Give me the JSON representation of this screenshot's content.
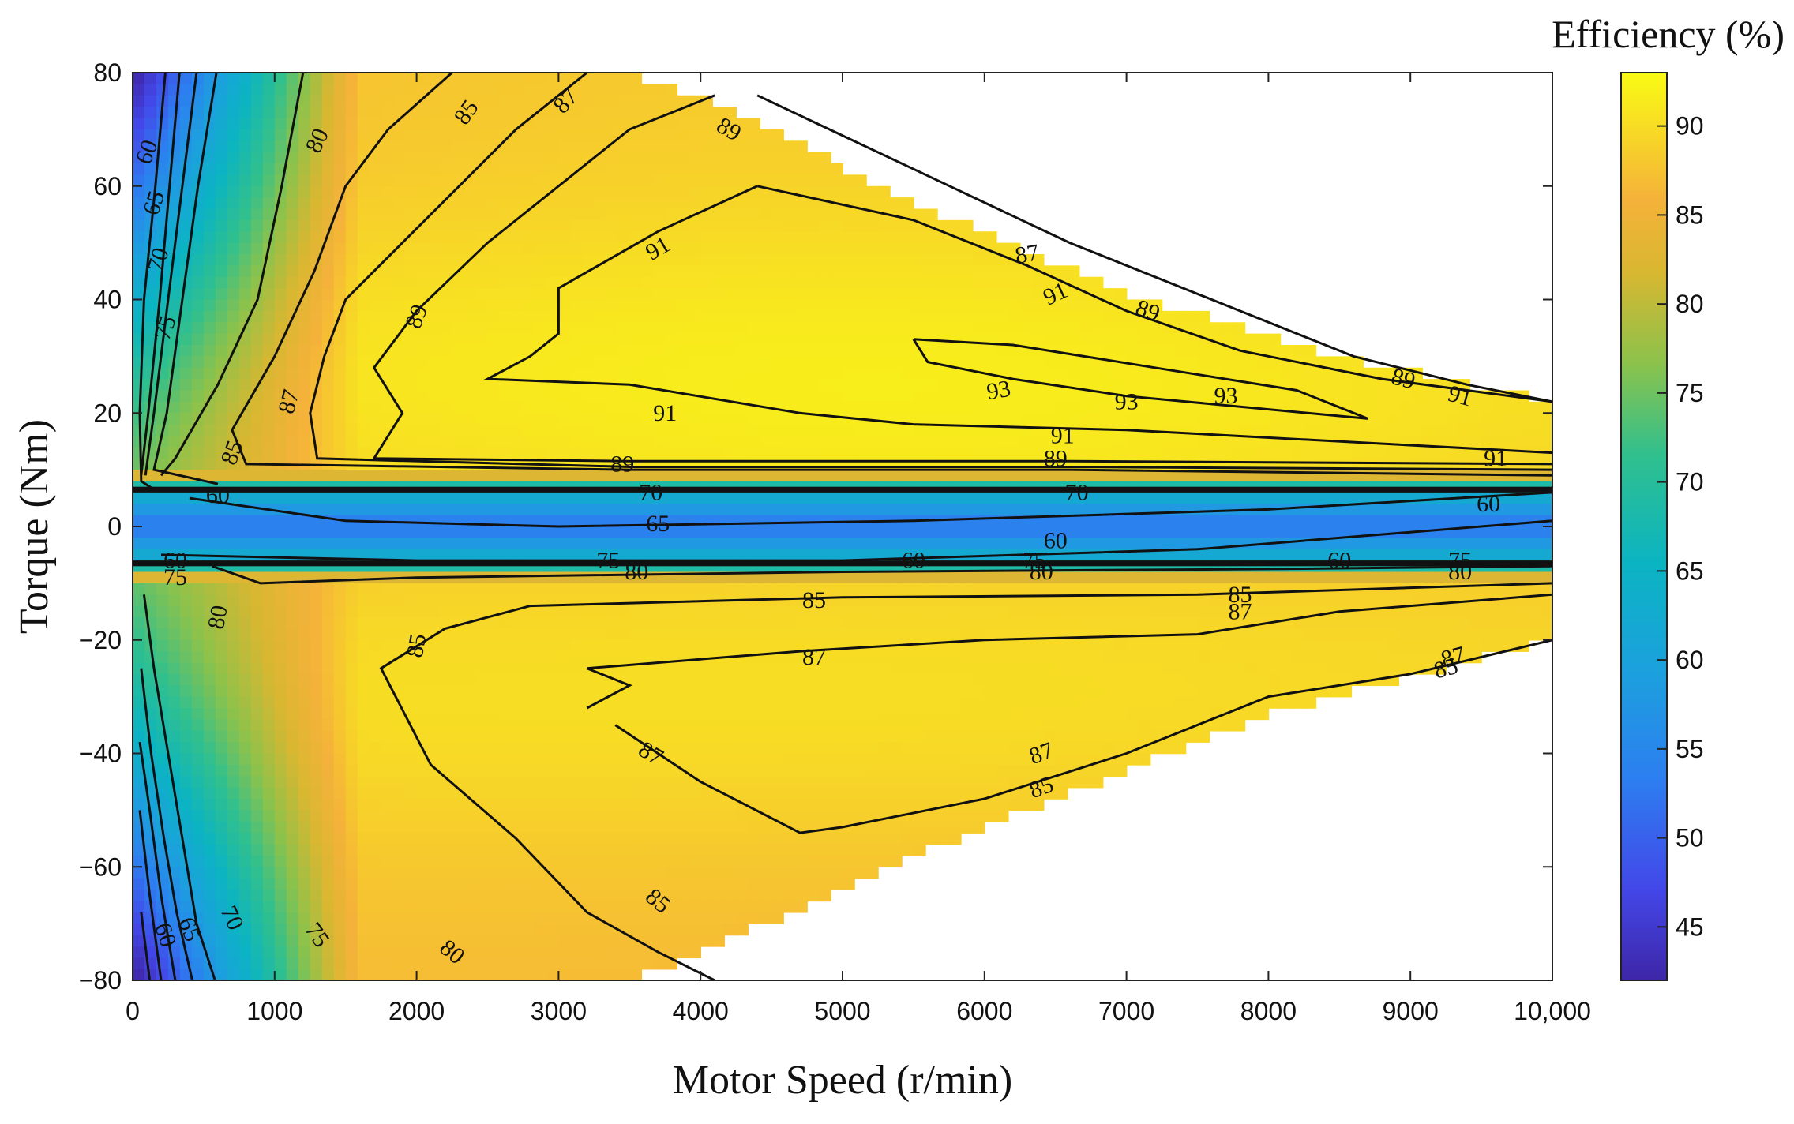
{
  "chart_data": {
    "type": "heatmap",
    "subtype": "efficiency-contour-map",
    "xlabel": "Motor Speed (r/min)",
    "ylabel": "Torque (Nm)",
    "xlim": [
      0,
      10000
    ],
    "ylim": [
      -80,
      80
    ],
    "x_ticks": [
      "0",
      "1000",
      "2000",
      "3000",
      "4000",
      "5000",
      "6000",
      "7000",
      "8000",
      "9000",
      "10,000"
    ],
    "y_ticks": [
      "80",
      "60",
      "40",
      "20",
      "0",
      "−20",
      "−40",
      "−60",
      "−80"
    ],
    "x_tick_values": [
      0,
      1000,
      2000,
      3000,
      4000,
      5000,
      6000,
      7000,
      8000,
      9000,
      10000
    ],
    "y_tick_values": [
      80,
      60,
      40,
      20,
      0,
      -20,
      -40,
      -60,
      -80
    ],
    "colorbar": {
      "title": "Efficiency (%)",
      "range": [
        42,
        93
      ],
      "ticks": [
        "90",
        "85",
        "80",
        "75",
        "70",
        "65",
        "60",
        "55",
        "50",
        "45"
      ],
      "tick_values": [
        90,
        85,
        80,
        75,
        70,
        65,
        60,
        55,
        50,
        45
      ],
      "colormap": "parula"
    },
    "operating_envelope": {
      "motoring_upper_torque": [
        {
          "speed": 0,
          "torque": 80
        },
        {
          "speed": 3500,
          "torque": 80
        },
        {
          "speed": 4200,
          "torque": 74
        },
        {
          "speed": 5500,
          "torque": 57
        },
        {
          "speed": 7000,
          "torque": 41
        },
        {
          "speed": 8500,
          "torque": 30
        },
        {
          "speed": 10000,
          "torque": 22
        }
      ],
      "generating_lower_torque": [
        {
          "speed": 0,
          "torque": -80
        },
        {
          "speed": 3500,
          "torque": -80
        },
        {
          "speed": 4200,
          "torque": -73
        },
        {
          "speed": 5500,
          "torque": -58
        },
        {
          "speed": 6800,
          "torque": -45
        },
        {
          "speed": 8000,
          "torque": -33
        },
        {
          "speed": 10000,
          "torque": -20
        }
      ]
    },
    "contour_lines": [
      {
        "level": 60,
        "region": "motoring",
        "points": [
          [
            230,
            80
          ],
          [
            160,
            60
          ],
          [
            80,
            40
          ],
          [
            50,
            20
          ],
          [
            60,
            8
          ],
          [
            150,
            6.5
          ]
        ]
      },
      {
        "level": 65,
        "region": "motoring",
        "points": [
          [
            330,
            80
          ],
          [
            260,
            60
          ],
          [
            190,
            40
          ],
          [
            110,
            20
          ],
          [
            60,
            9
          ]
        ]
      },
      {
        "level": 70,
        "region": "motoring",
        "points": [
          [
            450,
            80
          ],
          [
            350,
            60
          ],
          [
            250,
            40
          ],
          [
            150,
            20
          ],
          [
            90,
            9
          ]
        ]
      },
      {
        "level": 75,
        "region": "motoring",
        "points": [
          [
            590,
            80
          ],
          [
            460,
            60
          ],
          [
            350,
            40
          ],
          [
            240,
            20
          ],
          [
            150,
            10
          ],
          [
            600,
            7.5
          ]
        ]
      },
      {
        "level": 80,
        "region": "motoring",
        "points": [
          [
            1200,
            80
          ],
          [
            1050,
            60
          ],
          [
            880,
            40
          ],
          [
            600,
            25
          ],
          [
            300,
            12
          ],
          [
            200,
            9
          ]
        ]
      },
      {
        "level": 85,
        "region": "motoring",
        "points": [
          [
            2250,
            80
          ],
          [
            1800,
            70
          ],
          [
            1500,
            60
          ],
          [
            1280,
            45
          ],
          [
            1000,
            30
          ],
          [
            700,
            17
          ],
          [
            800,
            11
          ],
          [
            3500,
            10
          ],
          [
            6600,
            10
          ],
          [
            10000,
            9
          ]
        ]
      },
      {
        "level": 87,
        "region": "motoring",
        "points": [
          [
            3200,
            80
          ],
          [
            2700,
            70
          ],
          [
            2300,
            60
          ],
          [
            1900,
            50
          ],
          [
            1500,
            40
          ],
          [
            1350,
            30
          ],
          [
            1250,
            20
          ],
          [
            1300,
            12
          ],
          [
            3500,
            10.5
          ],
          [
            6600,
            10.5
          ],
          [
            10000,
            10
          ]
        ]
      },
      {
        "level": 89,
        "region": "motoring",
        "points": [
          [
            4100,
            76
          ],
          [
            3500,
            70
          ],
          [
            3100,
            62
          ],
          [
            2500,
            50
          ],
          [
            2000,
            38
          ],
          [
            1700,
            28
          ],
          [
            1900,
            20
          ],
          [
            1700,
            12
          ],
          [
            3500,
            11.5
          ],
          [
            6600,
            11.5
          ],
          [
            10000,
            11
          ]
        ]
      },
      {
        "level": 91,
        "region": "motoring",
        "points": [
          [
            4400,
            60
          ],
          [
            3700,
            52
          ],
          [
            3000,
            42
          ],
          [
            3000,
            34
          ],
          [
            2800,
            30
          ],
          [
            2500,
            26
          ],
          [
            3500,
            25
          ],
          [
            4700,
            20
          ],
          [
            5500,
            18
          ],
          [
            7000,
            17
          ],
          [
            10000,
            13
          ]
        ]
      },
      {
        "level": 93,
        "region": "motoring",
        "points": [
          [
            5500,
            33
          ],
          [
            6200,
            32
          ],
          [
            7200,
            28
          ],
          [
            8200,
            24
          ],
          [
            8700,
            19
          ],
          [
            7000,
            23
          ],
          [
            6200,
            26
          ],
          [
            5600,
            29
          ],
          [
            5500,
            33
          ]
        ]
      },
      {
        "level": 89,
        "region": "motoring-upper",
        "points": [
          [
            4400,
            76
          ],
          [
            5500,
            63
          ],
          [
            6600,
            50
          ],
          [
            7600,
            40
          ],
          [
            8600,
            30
          ],
          [
            9400,
            25
          ],
          [
            10000,
            22
          ]
        ]
      },
      {
        "level": 91,
        "region": "motoring-upper",
        "points": [
          [
            4400,
            60
          ],
          [
            5500,
            54
          ],
          [
            6300,
            46
          ],
          [
            7000,
            38
          ],
          [
            7800,
            31
          ],
          [
            8800,
            26
          ],
          [
            10000,
            22
          ]
        ]
      },
      {
        "level": 65,
        "region": "near-zero",
        "points": [
          [
            400,
            5
          ],
          [
            1500,
            1
          ],
          [
            3000,
            0
          ],
          [
            5500,
            1
          ],
          [
            8000,
            3
          ],
          [
            10000,
            6
          ]
        ]
      },
      {
        "level": 60,
        "region": "near-zero",
        "points": [
          [
            200,
            -5
          ],
          [
            2000,
            -6
          ],
          [
            5000,
            -6
          ],
          [
            7500,
            -4
          ],
          [
            9500,
            0
          ],
          [
            10000,
            1
          ]
        ]
      },
      {
        "level": 80,
        "region": "generating",
        "points": [
          [
            560,
            -7
          ],
          [
            900,
            -10
          ],
          [
            2000,
            -9
          ],
          [
            5000,
            -8
          ],
          [
            8000,
            -7.5
          ],
          [
            10000,
            -7
          ]
        ]
      },
      {
        "level": 85,
        "region": "generating",
        "points": [
          [
            4100,
            -80
          ],
          [
            3700,
            -75
          ],
          [
            3200,
            -68
          ],
          [
            2700,
            -55
          ],
          [
            2100,
            -42
          ],
          [
            1750,
            -25
          ],
          [
            2200,
            -18
          ],
          [
            2800,
            -14
          ],
          [
            5000,
            -12.5
          ],
          [
            7500,
            -12
          ],
          [
            10000,
            -10
          ]
        ]
      },
      {
        "level": 87,
        "region": "generating",
        "points": [
          [
            3200,
            -32
          ],
          [
            3500,
            -28
          ],
          [
            3200,
            -25
          ],
          [
            4700,
            -22
          ],
          [
            6000,
            -20
          ],
          [
            7500,
            -19
          ],
          [
            8500,
            -15
          ],
          [
            10000,
            -12
          ]
        ]
      },
      {
        "level": 87,
        "region": "generating-lower",
        "points": [
          [
            3400,
            -35
          ],
          [
            4000,
            -45
          ],
          [
            4700,
            -54
          ],
          [
            5000,
            -53
          ],
          [
            6000,
            -48
          ],
          [
            7000,
            -40
          ],
          [
            8000,
            -30
          ],
          [
            9000,
            -26
          ],
          [
            10000,
            -20
          ]
        ]
      },
      {
        "level": 80,
        "region": "generating-left",
        "points": [
          [
            580,
            -80
          ],
          [
            450,
            -70
          ],
          [
            350,
            -55
          ],
          [
            250,
            -40
          ],
          [
            150,
            -25
          ],
          [
            80,
            -12
          ]
        ]
      },
      {
        "level": 75,
        "region": "generating-left",
        "points": [
          [
            420,
            -80
          ],
          [
            310,
            -68
          ],
          [
            220,
            -55
          ],
          [
            130,
            -40
          ],
          [
            60,
            -25
          ]
        ]
      },
      {
        "level": 70,
        "region": "generating-left",
        "points": [
          [
            300,
            -80
          ],
          [
            200,
            -65
          ],
          [
            120,
            -50
          ],
          [
            50,
            -38
          ]
        ]
      },
      {
        "level": 65,
        "region": "generating-left",
        "points": [
          [
            200,
            -80
          ],
          [
            120,
            -65
          ],
          [
            50,
            -50
          ]
        ]
      },
      {
        "level": 60,
        "region": "generating-left",
        "points": [
          [
            120,
            -80
          ],
          [
            60,
            -68
          ]
        ]
      }
    ],
    "contour_labels": [
      {
        "text": "60",
        "x": 100,
        "y": 66,
        "angle": -70
      },
      {
        "text": "65",
        "x": 150,
        "y": 57,
        "angle": -72
      },
      {
        "text": "70",
        "x": 180,
        "y": 47,
        "angle": -72
      },
      {
        "text": "75",
        "x": 230,
        "y": 35,
        "angle": -72
      },
      {
        "text": "80",
        "x": 1300,
        "y": 68,
        "angle": -65
      },
      {
        "text": "85",
        "x": 2350,
        "y": 73,
        "angle": -55
      },
      {
        "text": "87",
        "x": 3050,
        "y": 75,
        "angle": -48
      },
      {
        "text": "89",
        "x": 4200,
        "y": 70,
        "angle": 30
      },
      {
        "text": "91",
        "x": 3700,
        "y": 49,
        "angle": -30
      },
      {
        "text": "89",
        "x": 2000,
        "y": 37,
        "angle": -70
      },
      {
        "text": "87",
        "x": 1100,
        "y": 22,
        "angle": -75
      },
      {
        "text": "85",
        "x": 700,
        "y": 13,
        "angle": -70
      },
      {
        "text": "87",
        "x": 6300,
        "y": 48,
        "angle": -10
      },
      {
        "text": "91",
        "x": 6500,
        "y": 41,
        "angle": -25
      },
      {
        "text": "89",
        "x": 7150,
        "y": 38,
        "angle": 20
      },
      {
        "text": "93",
        "x": 6100,
        "y": 24,
        "angle": -10
      },
      {
        "text": "93",
        "x": 7000,
        "y": 22,
        "angle": 0
      },
      {
        "text": "93",
        "x": 7700,
        "y": 23,
        "angle": 0
      },
      {
        "text": "91",
        "x": 3750,
        "y": 20,
        "angle": 0
      },
      {
        "text": "91",
        "x": 6550,
        "y": 16,
        "angle": 0
      },
      {
        "text": "89",
        "x": 3450,
        "y": 11,
        "angle": 0
      },
      {
        "text": "89",
        "x": 6500,
        "y": 12,
        "angle": 0
      },
      {
        "text": "89",
        "x": 8950,
        "y": 26,
        "angle": 15
      },
      {
        "text": "91",
        "x": 9350,
        "y": 23,
        "angle": 15
      },
      {
        "text": "91",
        "x": 9600,
        "y": 12,
        "angle": 0
      },
      {
        "text": "65",
        "x": 3700,
        "y": 0.5,
        "angle": 0
      },
      {
        "text": "60",
        "x": 6500,
        "y": -2.5,
        "angle": 0
      },
      {
        "text": "60",
        "x": 9550,
        "y": 4,
        "angle": 0
      },
      {
        "text": "60",
        "x": 5500,
        "y": -6,
        "angle": 0
      },
      {
        "text": "60",
        "x": 8500,
        "y": -6,
        "angle": 0
      },
      {
        "text": "80",
        "x": 3550,
        "y": -8,
        "angle": 0
      },
      {
        "text": "80",
        "x": 6400,
        "y": -8,
        "angle": 0
      },
      {
        "text": "80",
        "x": 9350,
        "y": -8,
        "angle": 0
      },
      {
        "text": "85",
        "x": 4800,
        "y": -13,
        "angle": 0
      },
      {
        "text": "85",
        "x": 7800,
        "y": -12,
        "angle": 0
      },
      {
        "text": "87",
        "x": 7800,
        "y": -15,
        "angle": 0
      },
      {
        "text": "87",
        "x": 4800,
        "y": -23,
        "angle": 0
      },
      {
        "text": "85",
        "x": 2000,
        "y": -21,
        "angle": -80
      },
      {
        "text": "80",
        "x": 600,
        "y": -16,
        "angle": -80
      },
      {
        "text": "87",
        "x": 3650,
        "y": -40,
        "angle": 30
      },
      {
        "text": "87",
        "x": 6400,
        "y": -40,
        "angle": -20
      },
      {
        "text": "85",
        "x": 6400,
        "y": -46,
        "angle": -20
      },
      {
        "text": "87",
        "x": 9300,
        "y": -23,
        "angle": -15
      },
      {
        "text": "85",
        "x": 9250,
        "y": -25,
        "angle": -15
      },
      {
        "text": "85",
        "x": 3700,
        "y": -66,
        "angle": 40
      },
      {
        "text": "80",
        "x": 2250,
        "y": -75,
        "angle": 40
      },
      {
        "text": "75",
        "x": 1300,
        "y": -72,
        "angle": 55
      },
      {
        "text": "70",
        "x": 700,
        "y": -69,
        "angle": 65
      },
      {
        "text": "65",
        "x": 400,
        "y": -71,
        "angle": 70
      },
      {
        "text": "60",
        "x": 230,
        "y": -72,
        "angle": 72
      },
      {
        "text": "75",
        "x": 300,
        "y": -9,
        "angle": 0
      },
      {
        "text": "60",
        "x": 300,
        "y": -6,
        "angle": 0
      },
      {
        "text": "60",
        "x": 600,
        "y": 5.5,
        "angle": 0
      },
      {
        "text": "70",
        "x": 3650,
        "y": 6,
        "angle": 0
      },
      {
        "text": "70",
        "x": 6650,
        "y": 6,
        "angle": 0
      },
      {
        "text": "75",
        "x": 3350,
        "y": -6,
        "angle": 0
      },
      {
        "text": "75",
        "x": 6350,
        "y": -6,
        "angle": 0
      },
      {
        "text": "75",
        "x": 9350,
        "y": -6,
        "angle": 0
      }
    ]
  }
}
